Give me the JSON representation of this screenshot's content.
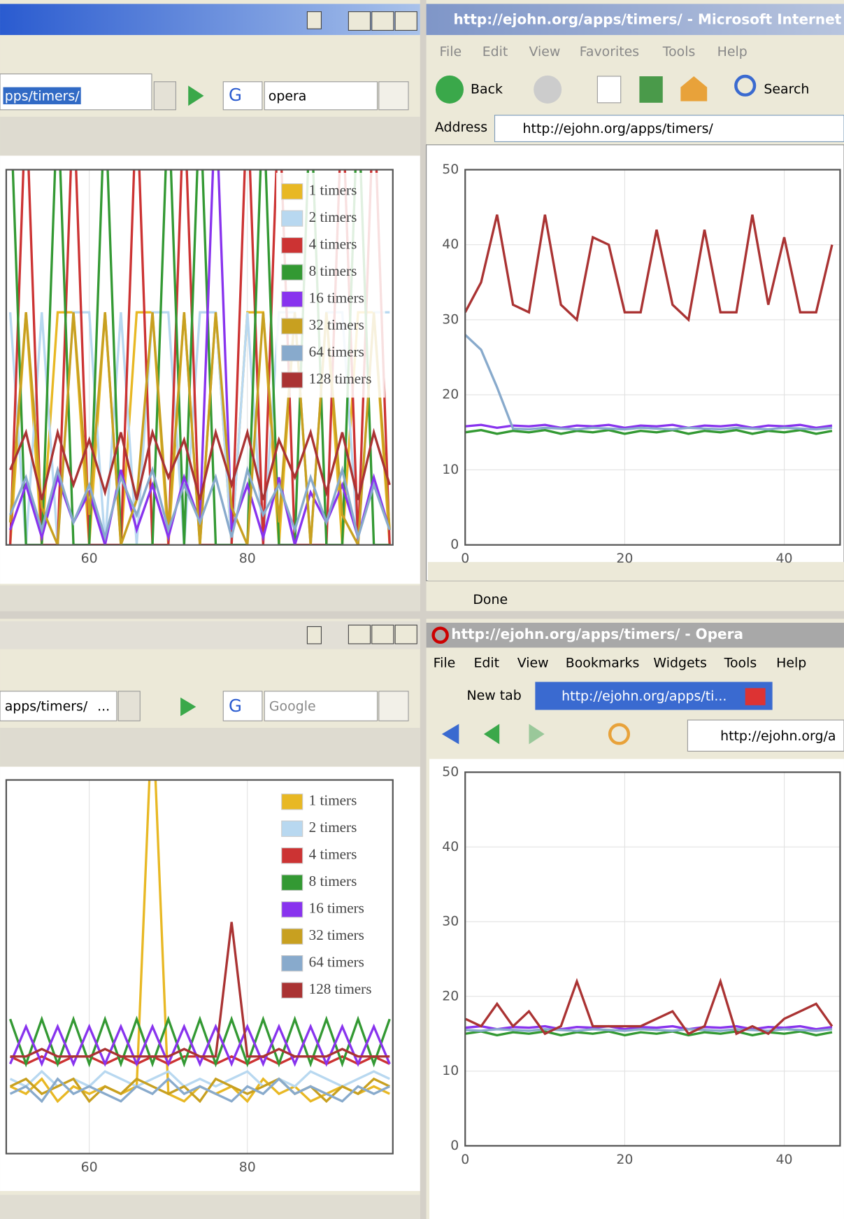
{
  "windows": [
    {
      "url": "pps/timers/",
      "search": "opera"
    },
    {
      "url": "apps/timers/",
      "url_more": "...",
      "search": "Google"
    },
    {
      "title": "http://ejohn.org/apps/timers/ - Microsoft Internet",
      "menu": [
        "File",
        "Edit",
        "View",
        "Favorites",
        "Tools",
        "Help"
      ],
      "back": "Back",
      "search": "Search",
      "address_label": "Address",
      "url": "http://ejohn.org/apps/timers/",
      "status": "Done"
    },
    {
      "title": "http://ejohn.org/apps/timers/ - Opera",
      "menu": [
        "File",
        "Edit",
        "View",
        "Bookmarks",
        "Widgets",
        "Tools",
        "Help"
      ],
      "new_tab": "New tab",
      "tab": "http://ejohn.org/apps/ti...",
      "url": "http://ejohn.org/a"
    }
  ],
  "chart_data": [
    {
      "type": "line",
      "legend": "upper right",
      "grid": true,
      "xlim": [
        49.5,
        98.4
      ],
      "xticks": [
        60,
        80
      ],
      "ylim": [
        0,
        50
      ],
      "x": [
        50,
        52,
        54,
        56,
        58,
        60,
        62,
        64,
        66,
        68,
        70,
        72,
        74,
        76,
        78,
        80,
        82,
        84,
        86,
        88,
        90,
        92,
        94,
        96,
        98
      ],
      "series": [
        {
          "name": "1 timers",
          "color": "#e8b824",
          "values": [
            0,
            31,
            0,
            31,
            31,
            0,
            31,
            0,
            31,
            31,
            0,
            31,
            0,
            31,
            0,
            31,
            31,
            0,
            31,
            0,
            31,
            0,
            31,
            31,
            0
          ]
        },
        {
          "name": "2 timers",
          "color": "#b8d8f0",
          "values": [
            31,
            0,
            31,
            0,
            31,
            31,
            0,
            31,
            0,
            31,
            31,
            0,
            31,
            31,
            0,
            31,
            0,
            31,
            31,
            0,
            31,
            31,
            0,
            31,
            31
          ]
        },
        {
          "name": "4 timers",
          "color": "#cc3333",
          "values": [
            0,
            60,
            0,
            0,
            60,
            0,
            0,
            0,
            60,
            0,
            0,
            60,
            0,
            0,
            0,
            60,
            0,
            60,
            0,
            0,
            0,
            60,
            0,
            60,
            0
          ]
        },
        {
          "name": "8 timers",
          "color": "#339933",
          "values": [
            60,
            0,
            0,
            60,
            0,
            0,
            60,
            0,
            0,
            0,
            60,
            0,
            60,
            0,
            0,
            0,
            60,
            0,
            0,
            60,
            0,
            0,
            60,
            0,
            0
          ]
        },
        {
          "name": "16 timers",
          "color": "#8833ee",
          "values": [
            2,
            8,
            1,
            9,
            3,
            7,
            0,
            10,
            2,
            8,
            1,
            9,
            3,
            60,
            2,
            8,
            1,
            9,
            0,
            7,
            3,
            8,
            1,
            9,
            2
          ]
        },
        {
          "name": "32 timers",
          "color": "#c8a020",
          "values": [
            3,
            31,
            5,
            0,
            31,
            4,
            31,
            0,
            6,
            31,
            2,
            31,
            0,
            31,
            5,
            0,
            31,
            3,
            31,
            0,
            31,
            4,
            0,
            31,
            2
          ]
        },
        {
          "name": "64 timers",
          "color": "#88aacc",
          "values": [
            4,
            9,
            2,
            10,
            3,
            8,
            1,
            9,
            4,
            10,
            2,
            8,
            3,
            9,
            1,
            10,
            4,
            8,
            2,
            9,
            3,
            10,
            1,
            8,
            2
          ]
        },
        {
          "name": "128 timers",
          "color": "#aa3333",
          "values": [
            10,
            15,
            6,
            15,
            8,
            14,
            7,
            15,
            6,
            15,
            9,
            14,
            6,
            15,
            8,
            15,
            6,
            14,
            9,
            15,
            7,
            15,
            6,
            15,
            8
          ]
        }
      ]
    },
    {
      "type": "line",
      "legend": "upper right",
      "grid": true,
      "xlim": [
        49.5,
        98.4
      ],
      "xticks": [
        60,
        80
      ],
      "ylim": [
        0,
        50
      ],
      "x": [
        50,
        52,
        54,
        56,
        58,
        60,
        62,
        64,
        66,
        68,
        70,
        72,
        74,
        76,
        78,
        80,
        82,
        84,
        86,
        88,
        90,
        92,
        94,
        96,
        98
      ],
      "series": [
        {
          "name": "1 timers",
          "color": "#e8b824",
          "values": [
            9,
            8,
            10,
            7,
            9,
            8,
            9,
            8,
            9,
            60,
            8,
            7,
            9,
            8,
            9,
            7,
            10,
            8,
            9,
            7,
            8,
            9,
            8,
            9,
            8
          ]
        },
        {
          "name": "2 timers",
          "color": "#b8d8f0",
          "values": [
            10,
            9,
            11,
            9,
            10,
            9,
            11,
            10,
            9,
            10,
            11,
            9,
            10,
            9,
            10,
            11,
            9,
            10,
            9,
            11,
            10,
            9,
            10,
            11,
            10
          ]
        },
        {
          "name": "4 timers",
          "color": "#cc3333",
          "values": [
            13,
            12,
            13,
            12,
            13,
            13,
            12,
            13,
            12,
            13,
            12,
            13,
            13,
            12,
            13,
            12,
            13,
            12,
            13,
            13,
            12,
            13,
            12,
            13,
            12
          ]
        },
        {
          "name": "8 timers",
          "color": "#339933",
          "values": [
            18,
            12,
            18,
            12,
            18,
            12,
            18,
            12,
            18,
            12,
            18,
            12,
            18,
            12,
            18,
            12,
            18,
            12,
            18,
            12,
            18,
            12,
            18,
            12,
            18
          ]
        },
        {
          "name": "16 timers",
          "color": "#8833ee",
          "values": [
            12,
            17,
            12,
            17,
            12,
            17,
            12,
            17,
            12,
            17,
            12,
            17,
            12,
            17,
            12,
            17,
            12,
            17,
            12,
            17,
            12,
            17,
            12,
            17,
            12
          ]
        },
        {
          "name": "32 timers",
          "color": "#c8a020",
          "values": [
            9,
            10,
            8,
            9,
            10,
            7,
            9,
            8,
            10,
            9,
            8,
            9,
            7,
            10,
            9,
            8,
            9,
            10,
            8,
            9,
            7,
            9,
            8,
            10,
            9
          ]
        },
        {
          "name": "64 timers",
          "color": "#88aacc",
          "values": [
            8,
            9,
            7,
            10,
            8,
            9,
            8,
            7,
            9,
            8,
            10,
            8,
            9,
            8,
            7,
            9,
            8,
            10,
            8,
            9,
            8,
            7,
            9,
            8,
            9
          ]
        },
        {
          "name": "128 timers",
          "color": "#aa3333",
          "values": [
            13,
            13,
            14,
            13,
            13,
            13,
            14,
            13,
            13,
            13,
            13,
            14,
            13,
            13,
            31,
            13,
            13,
            14,
            13,
            13,
            13,
            14,
            13,
            13,
            13
          ]
        }
      ]
    },
    {
      "type": "line",
      "grid": true,
      "xlim": [
        0,
        47
      ],
      "xticks": [
        0,
        20,
        40
      ],
      "ylim": [
        0,
        50
      ],
      "yticks": [
        0,
        10,
        20,
        30,
        40,
        50
      ],
      "x": [
        0,
        2,
        4,
        6,
        8,
        10,
        12,
        14,
        16,
        18,
        20,
        22,
        24,
        26,
        28,
        30,
        32,
        34,
        36,
        38,
        40,
        42,
        44,
        46
      ],
      "series": [
        {
          "color": "#339933",
          "values": [
            15,
            15.3,
            14.8,
            15.2,
            15,
            15.3,
            14.8,
            15.2,
            15,
            15.3,
            14.8,
            15.2,
            15,
            15.3,
            14.8,
            15.2,
            15,
            15.3,
            14.8,
            15.2,
            15,
            15.3,
            14.8,
            15.2
          ]
        },
        {
          "color": "#8833ee",
          "values": [
            15.8,
            16,
            15.6,
            15.9,
            15.8,
            16,
            15.6,
            15.9,
            15.8,
            16,
            15.6,
            15.9,
            15.8,
            16,
            15.6,
            15.9,
            15.8,
            16,
            15.6,
            15.9,
            15.8,
            16,
            15.6,
            15.9
          ]
        },
        {
          "color": "#88aacc",
          "values": [
            28,
            26,
            21,
            15.5,
            15.4,
            15.6,
            15.5,
            15.4,
            15.6,
            15.5,
            15.4,
            15.6,
            15.5,
            15.4,
            15.6,
            15.5,
            15.4,
            15.6,
            15.5,
            15.4,
            15.6,
            15.5,
            15.4,
            15.6
          ]
        },
        {
          "color": "#aa3333",
          "values": [
            31,
            35,
            44,
            32,
            31,
            44,
            32,
            30,
            41,
            40,
            31,
            31,
            42,
            32,
            30,
            42,
            31,
            31,
            44,
            32,
            41,
            31,
            31,
            40
          ]
        }
      ]
    },
    {
      "type": "line",
      "grid": true,
      "xlim": [
        0,
        47
      ],
      "xticks": [
        0,
        20,
        40
      ],
      "ylim": [
        0,
        50
      ],
      "yticks": [
        0,
        10,
        20,
        30,
        40,
        50
      ],
      "x": [
        0,
        2,
        4,
        6,
        8,
        10,
        12,
        14,
        16,
        18,
        20,
        22,
        24,
        26,
        28,
        30,
        32,
        34,
        36,
        38,
        40,
        42,
        44,
        46
      ],
      "series": [
        {
          "color": "#339933",
          "values": [
            15,
            15.3,
            14.8,
            15.2,
            15,
            15.3,
            14.8,
            15.2,
            15,
            15.3,
            14.8,
            15.2,
            15,
            15.3,
            14.8,
            15.2,
            15,
            15.3,
            14.8,
            15.2,
            15,
            15.3,
            14.8,
            15.2
          ]
        },
        {
          "color": "#8833ee",
          "values": [
            15.8,
            16,
            15.6,
            15.9,
            15.8,
            16,
            15.6,
            15.9,
            15.8,
            16,
            15.6,
            15.9,
            15.8,
            16,
            15.6,
            15.9,
            15.8,
            16,
            15.6,
            15.9,
            15.8,
            16,
            15.6,
            15.9
          ]
        },
        {
          "color": "#88aacc",
          "values": [
            15.5,
            15.4,
            15.6,
            15.5,
            15.4,
            15.6,
            15.5,
            15.4,
            15.6,
            15.5,
            15.4,
            15.6,
            15.5,
            15.4,
            15.6,
            15.5,
            15.4,
            15.6,
            15.5,
            15.4,
            15.6,
            15.5,
            15.4,
            15.6
          ]
        },
        {
          "color": "#aa3333",
          "values": [
            17,
            16,
            19,
            16,
            18,
            15,
            16,
            22,
            16,
            16,
            16,
            16,
            17,
            18,
            15,
            16,
            22,
            15,
            16,
            15,
            17,
            18,
            19,
            16
          ]
        }
      ]
    }
  ]
}
